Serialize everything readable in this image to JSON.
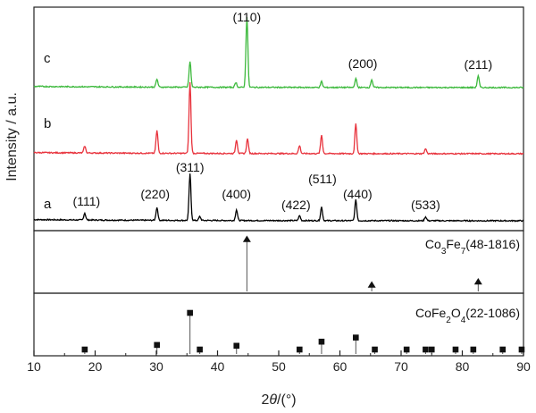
{
  "chart_data": {
    "type": "line",
    "xlabel": "2θ/(°)",
    "ylabel": "Intensity / a.u.",
    "xlim": [
      10,
      90
    ],
    "xticks": [
      "10",
      "20",
      "30",
      "40",
      "50",
      "60",
      "70",
      "80",
      "90"
    ],
    "series": [
      {
        "name": "a",
        "color": "#000000",
        "peaks": [
          {
            "x": 18.3,
            "h": 0.07
          },
          {
            "x": 30.1,
            "h": 0.13
          },
          {
            "x": 35.5,
            "h": 0.47
          },
          {
            "x": 37.1,
            "h": 0.04
          },
          {
            "x": 43.1,
            "h": 0.11
          },
          {
            "x": 53.4,
            "h": 0.05
          },
          {
            "x": 57.0,
            "h": 0.14
          },
          {
            "x": 62.6,
            "h": 0.21
          },
          {
            "x": 74.0,
            "h": 0.04
          }
        ]
      },
      {
        "name": "b",
        "color": "#e8323c",
        "peaks": [
          {
            "x": 18.3,
            "h": 0.07
          },
          {
            "x": 30.1,
            "h": 0.23
          },
          {
            "x": 35.5,
            "h": 0.72
          },
          {
            "x": 43.1,
            "h": 0.14
          },
          {
            "x": 44.9,
            "h": 0.15
          },
          {
            "x": 53.4,
            "h": 0.08
          },
          {
            "x": 57.0,
            "h": 0.19
          },
          {
            "x": 62.6,
            "h": 0.3
          },
          {
            "x": 74.0,
            "h": 0.05
          }
        ]
      },
      {
        "name": "c",
        "color": "#3cb93c",
        "peaks": [
          {
            "x": 30.1,
            "h": 0.08
          },
          {
            "x": 35.5,
            "h": 0.26
          },
          {
            "x": 43.0,
            "h": 0.05
          },
          {
            "x": 44.8,
            "h": 0.72
          },
          {
            "x": 57.0,
            "h": 0.06
          },
          {
            "x": 62.6,
            "h": 0.09
          },
          {
            "x": 65.2,
            "h": 0.08
          },
          {
            "x": 82.6,
            "h": 0.12
          }
        ]
      }
    ],
    "peak_labels": {
      "a": [
        {
          "text": "(111)",
          "x": 18.3
        },
        {
          "text": "(220)",
          "x": 30.1
        },
        {
          "text": "(311)",
          "x": 35.5
        },
        {
          "text": "(400)",
          "x": 43.1
        },
        {
          "text": "(422)",
          "x": 53.4
        },
        {
          "text": "(511)",
          "x": 57.0
        },
        {
          "text": "(440)",
          "x": 62.6
        },
        {
          "text": "(533)",
          "x": 74.0
        }
      ],
      "c": [
        {
          "text": "(110)",
          "x": 44.8
        },
        {
          "text": "(200)",
          "x": 65.2
        },
        {
          "text": "(211)",
          "x": 82.6
        }
      ]
    },
    "references": [
      {
        "label_main": "Co",
        "label_sub1": "3",
        "label_mid": "Fe",
        "label_sub2": "7",
        "label_tail": "(48-1816)",
        "marker": "triangle",
        "lines": [
          {
            "x": 44.8,
            "h": 1.0
          },
          {
            "x": 65.2,
            "h": 0.12
          },
          {
            "x": 82.6,
            "h": 0.18
          }
        ]
      },
      {
        "label_main": "CoFe",
        "label_sub1": "2",
        "label_mid": "O",
        "label_sub2": "4",
        "label_tail": "(22-1086)",
        "marker": "square",
        "lines": [
          {
            "x": 18.3,
            "h": 0.08
          },
          {
            "x": 30.1,
            "h": 0.22
          },
          {
            "x": 35.5,
            "h": 1.0
          },
          {
            "x": 37.1,
            "h": 0.06
          },
          {
            "x": 43.1,
            "h": 0.2
          },
          {
            "x": 53.4,
            "h": 0.1
          },
          {
            "x": 57.0,
            "h": 0.3
          },
          {
            "x": 62.6,
            "h": 0.4
          },
          {
            "x": 65.7,
            "h": 0.05
          },
          {
            "x": 70.9,
            "h": 0.04
          },
          {
            "x": 74.0,
            "h": 0.08
          },
          {
            "x": 75.0,
            "h": 0.05
          },
          {
            "x": 78.9,
            "h": 0.04
          },
          {
            "x": 81.8,
            "h": 0.04
          },
          {
            "x": 86.6,
            "h": 0.04
          },
          {
            "x": 89.7,
            "h": 0.04
          }
        ]
      }
    ]
  }
}
